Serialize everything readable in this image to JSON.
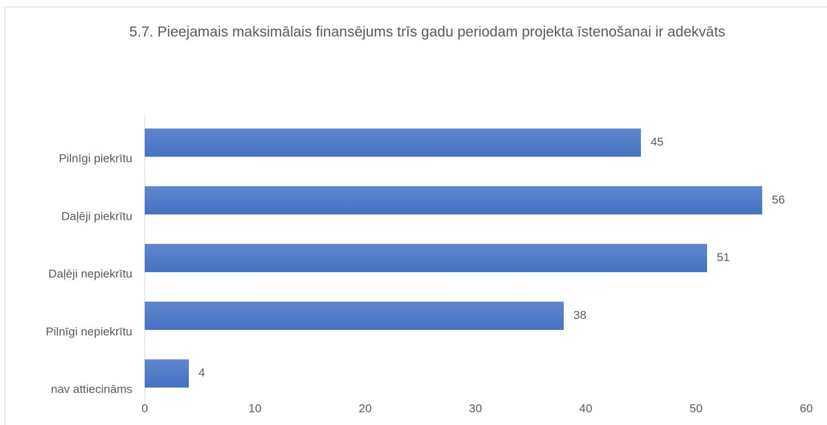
{
  "chart_data": {
    "type": "bar",
    "orientation": "horizontal",
    "title": "5.7. Pieejamais maksimālais finansējums trīs gadu periodam projekta īstenošanai ir adekvāts",
    "categories": [
      "Pilnīgi piekrītu",
      "Daļēji piekrītu",
      "Daļēji nepiekrītu",
      "Pilnīgi nepiekrītu",
      "nav attiecināms"
    ],
    "values": [
      45,
      56,
      51,
      38,
      4
    ],
    "color": "#4472c4",
    "xlim": [
      0,
      60
    ],
    "xticks": [
      0,
      10,
      20,
      30,
      40,
      50,
      60
    ],
    "grid": false
  }
}
